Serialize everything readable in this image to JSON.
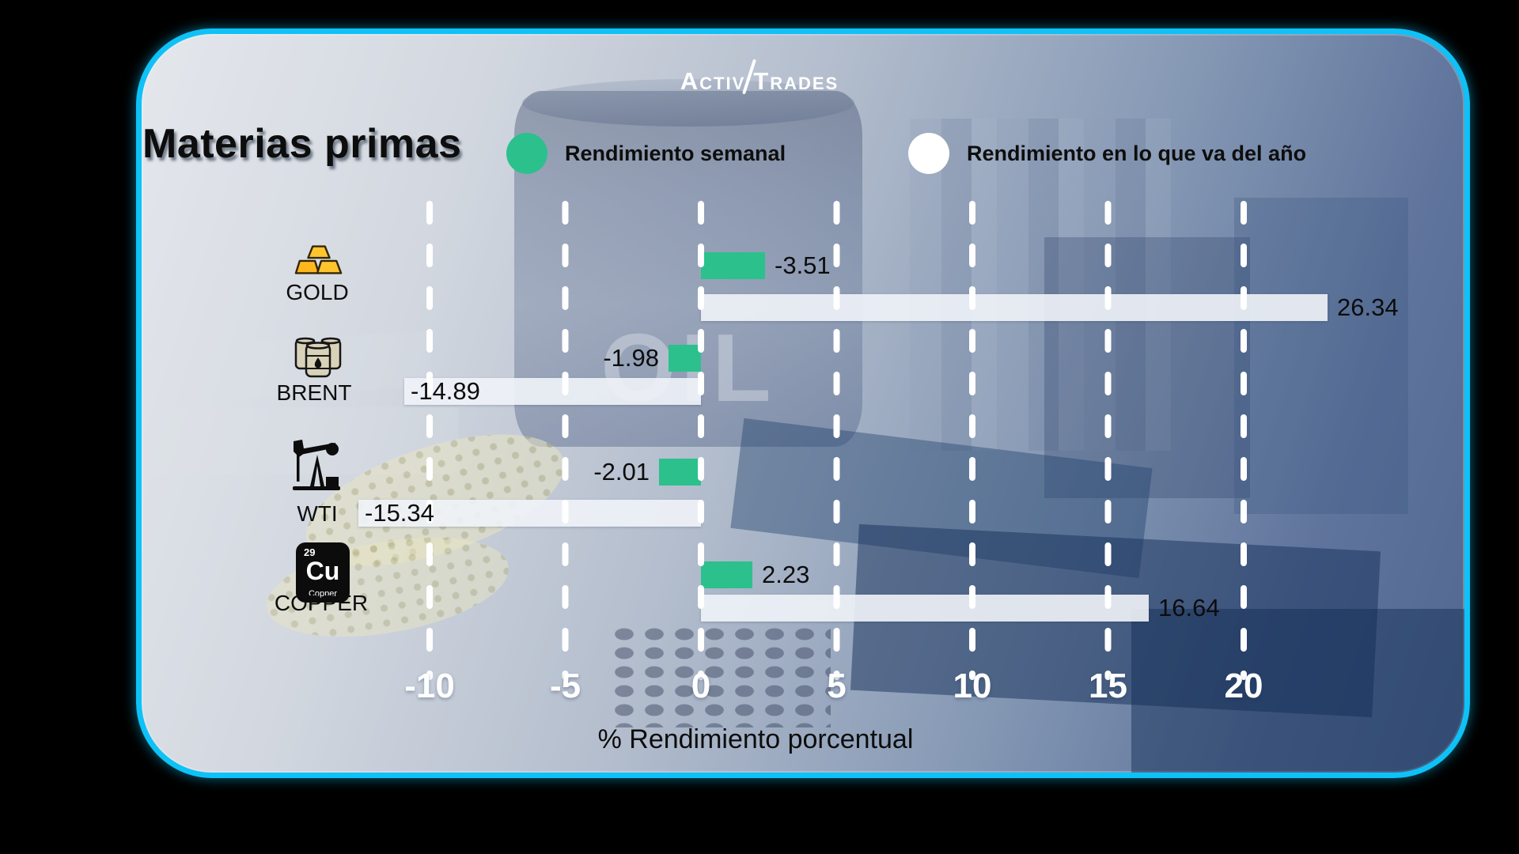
{
  "logo": {
    "part1": "Activ",
    "part2": "Trades"
  },
  "header": {
    "title": "Materias primas"
  },
  "legend": {
    "items": [
      {
        "label": "Rendimiento semanal",
        "color": "#2cc08d"
      },
      {
        "label": "Rendimiento en lo que va del año",
        "color": "#ffffff"
      }
    ]
  },
  "background": {
    "oil_text": "OIL"
  },
  "axis": {
    "label": "% Rendimiento porcentual"
  },
  "colors": {
    "accent_green": "#2cc08d",
    "bar_white": "#f0f3f8",
    "border_cyan": "#0ec2f7"
  },
  "chart_data": {
    "type": "bar",
    "orientation": "horizontal",
    "title": "Materias primas",
    "xlabel": "% Rendimiento porcentual",
    "xlim": [
      -10,
      20
    ],
    "x_ticks": [
      "-10",
      "-5",
      "0",
      "5",
      "10",
      "15",
      "20"
    ],
    "grid": "dashed-white-vertical",
    "legend_position": "top",
    "series_meta": [
      {
        "name": "Rendimiento semanal",
        "color": "#2cc08d"
      },
      {
        "name": "Rendimiento en lo que va del año",
        "color": "#f0f3f8"
      }
    ],
    "rows": [
      {
        "label": "GOLD",
        "icon": "gold-bars-icon",
        "weekly": -3.51,
        "weekly_label": "-3.51",
        "ytd": 26.34,
        "ytd_label": "26.34"
      },
      {
        "label": "BRENT",
        "icon": "oil-barrels-icon",
        "weekly": -1.98,
        "weekly_label": "-1.98",
        "ytd": -14.89,
        "ytd_label": "-14.89"
      },
      {
        "label": "WTI",
        "icon": "pumpjack-icon",
        "weekly": -2.01,
        "weekly_label": "-2.01",
        "ytd": -15.34,
        "ytd_label": "-15.34"
      },
      {
        "label": "COPPER",
        "icon": "copper-element-icon",
        "weekly": 2.23,
        "weekly_label": "2.23",
        "ytd": 16.64,
        "ytd_label": "16.64"
      }
    ],
    "copper_badge": {
      "number": "29",
      "symbol": "Cu",
      "name": "Copper"
    }
  }
}
